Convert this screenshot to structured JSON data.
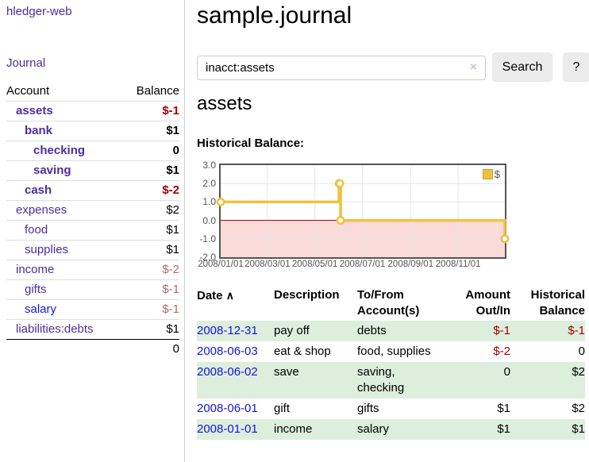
{
  "app": {
    "brand": "hledger-web"
  },
  "sidebar": {
    "journal_link": "Journal",
    "accounts": {
      "header": {
        "account": "Account",
        "balance": "Balance"
      },
      "rows": [
        {
          "name": "assets",
          "balance": "$-1"
        },
        {
          "name": "bank",
          "balance": "$1"
        },
        {
          "name": "checking",
          "balance": "0"
        },
        {
          "name": "saving",
          "balance": "$1"
        },
        {
          "name": "cash",
          "balance": "$-2"
        },
        {
          "name": "expenses",
          "balance": "$2"
        },
        {
          "name": "food",
          "balance": "$1"
        },
        {
          "name": "supplies",
          "balance": "$1"
        },
        {
          "name": "income",
          "balance": "$-2"
        },
        {
          "name": "gifts",
          "balance": "$-1"
        },
        {
          "name": "salary",
          "balance": "$-1"
        },
        {
          "name": "liabilities:debts",
          "balance": "$1"
        }
      ],
      "total": "0"
    }
  },
  "main": {
    "title": "sample.journal",
    "search": {
      "value": "inacct:assets",
      "clear_icon": "×",
      "button": "Search",
      "help": "?"
    },
    "heading": "assets",
    "chart_label": "Historical Balance:"
  },
  "chart_data": {
    "type": "line",
    "style": "step",
    "title": "Historical Balance",
    "legend": [
      {
        "label": "$",
        "color": "#edc240"
      }
    ],
    "legend_position": "top-right",
    "grid": true,
    "ylim": [
      -2,
      3
    ],
    "y_ticks": [
      "3.0",
      "2.0",
      "1.0",
      "0.0",
      "-1.0",
      "-2.0"
    ],
    "x_ticks": [
      {
        "day": 0,
        "label": "2008/01/01"
      },
      {
        "day": 60,
        "label": "2008/03/01"
      },
      {
        "day": 121,
        "label": "2008/05/01"
      },
      {
        "day": 182,
        "label": "2008/07/01"
      },
      {
        "day": 244,
        "label": "2008/09/01"
      },
      {
        "day": 305,
        "label": "2008/11/01"
      }
    ],
    "x_range_days": [
      0,
      365
    ],
    "points": [
      {
        "date": "2008-01-01",
        "day": 0,
        "value": 1
      },
      {
        "date": "2008-06-01",
        "day": 152,
        "value": 2
      },
      {
        "date": "2008-06-02",
        "day": 153,
        "value": 2
      },
      {
        "date": "2008-06-03",
        "day": 154,
        "value": 0
      },
      {
        "date": "2008-12-31",
        "day": 365,
        "value": -1
      }
    ],
    "series_color": "#edc240",
    "negative_region_color": "#fbdada",
    "zero_line_color": "#8b0000",
    "grid_color": "#e6e6e6",
    "border_color": "#545454"
  },
  "transactions": {
    "headers": {
      "date": "Date",
      "sort_icon": "∧",
      "description": "Description",
      "tofrom_lines": [
        "To/From",
        "Account(s)"
      ],
      "amount_lines": [
        "Amount",
        "Out/In"
      ],
      "balance_lines": [
        "Historical",
        "Balance"
      ]
    },
    "rows": [
      {
        "date": "2008-12-31",
        "description": "pay off",
        "tofrom_lines": [
          "debts"
        ],
        "amount": "$-1",
        "balance": "$-1"
      },
      {
        "date": "2008-06-03",
        "description": "eat & shop",
        "tofrom_lines": [
          "food, supplies"
        ],
        "amount": "$-2",
        "balance": "0"
      },
      {
        "date": "2008-06-02",
        "description": "save",
        "tofrom_lines": [
          "saving,",
          "checking"
        ],
        "amount": "0",
        "balance": "$2"
      },
      {
        "date": "2008-06-01",
        "description": "gift",
        "tofrom_lines": [
          "gifts"
        ],
        "amount": "$1",
        "balance": "$2"
      },
      {
        "date": "2008-01-01",
        "description": "income",
        "tofrom_lines": [
          "salary"
        ],
        "amount": "$1",
        "balance": "$1"
      }
    ]
  }
}
